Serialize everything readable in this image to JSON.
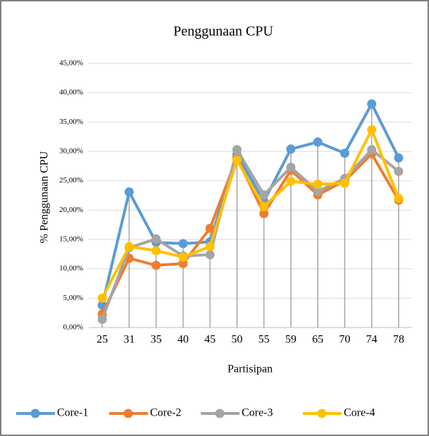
{
  "chart_data": {
    "type": "line",
    "title": "Penggunaan CPU",
    "x_label": "Partisipan",
    "y_label": "% Penggunaan CPU",
    "categories": [
      "25",
      "31",
      "35",
      "40",
      "45",
      "50",
      "55",
      "59",
      "65",
      "70",
      "74",
      "78"
    ],
    "series": [
      {
        "name": "Core-1",
        "color": "#5b9bd5",
        "values": [
          3.8,
          23.1,
          14.5,
          14.3,
          14.6,
          29.5,
          21.5,
          30.4,
          31.6,
          29.7,
          38.1,
          28.9
        ]
      },
      {
        "name": "Core-2",
        "color": "#ed7d31",
        "values": [
          2.3,
          11.8,
          10.6,
          10.9,
          16.9,
          29.0,
          19.4,
          26.8,
          22.6,
          25.0,
          29.6,
          21.7
        ]
      },
      {
        "name": "Core-3",
        "color": "#a5a5a5",
        "values": [
          1.4,
          13.6,
          15.1,
          12.2,
          12.4,
          30.3,
          22.6,
          27.3,
          23.2,
          25.4,
          30.3,
          26.6
        ]
      },
      {
        "name": "Core-4",
        "color": "#ffc000",
        "values": [
          5.0,
          13.8,
          13.1,
          12.0,
          13.8,
          28.5,
          20.6,
          24.9,
          24.4,
          24.6,
          33.7,
          22.0
        ]
      }
    ],
    "ylim": [
      0,
      45
    ],
    "yticks": [
      {
        "value": 0,
        "label": "0,00%"
      },
      {
        "value": 5,
        "label": "5,00%"
      },
      {
        "value": 10,
        "label": "10,00%"
      },
      {
        "value": 15,
        "label": "15,00%"
      },
      {
        "value": 20,
        "label": "20,00%"
      },
      {
        "value": 25,
        "label": "25,00%"
      },
      {
        "value": 30,
        "label": "30,00%"
      },
      {
        "value": 35,
        "label": "35,00%"
      },
      {
        "value": 40,
        "label": "40,00%"
      },
      {
        "value": 45,
        "label": "45,00%"
      }
    ],
    "grid": true,
    "drop_lines": true,
    "legend": "bottom"
  }
}
